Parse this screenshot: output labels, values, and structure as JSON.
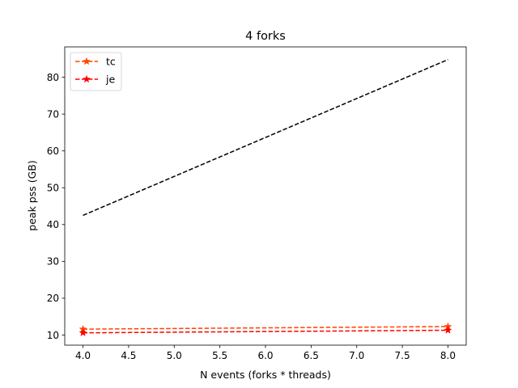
{
  "chart_data": {
    "type": "line",
    "title": "4 forks",
    "xlabel": "N events (forks * threads)",
    "ylabel": "peak pss (GB)",
    "xlim": [
      3.8,
      8.2
    ],
    "ylim": [
      7.25,
      88.25
    ],
    "x_ticks": [
      "4.0",
      "4.5",
      "5.0",
      "5.5",
      "6.0",
      "6.5",
      "7.0",
      "7.5",
      "8.0"
    ],
    "y_ticks": [
      "10",
      "20",
      "30",
      "40",
      "50",
      "60",
      "70",
      "80"
    ],
    "legend_position": "top-left",
    "grid": false,
    "series": [
      {
        "name": "tc",
        "color": "#ff4500",
        "marker": "star",
        "line_style": "dashed",
        "x": [
          4.0,
          8.0
        ],
        "y": [
          11.6,
          12.3
        ]
      },
      {
        "name": "je",
        "color": "#ff0000",
        "marker": "star",
        "line_style": "dashed",
        "x": [
          4.0,
          8.0
        ],
        "y": [
          10.6,
          11.3
        ]
      },
      {
        "color": "#000000",
        "marker": "none",
        "line_style": "dashed",
        "x": [
          4.0,
          8.0
        ],
        "y": [
          42.5,
          84.8
        ]
      }
    ]
  }
}
